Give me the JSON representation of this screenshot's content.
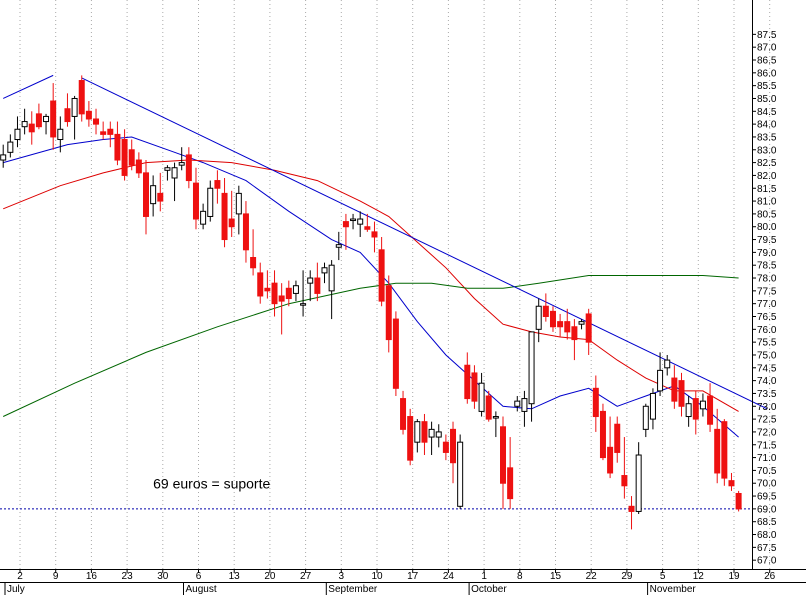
{
  "chart_data": {
    "type": "candlestick",
    "y_axis": {
      "position": "right",
      "min": 66.5,
      "max": 87.75,
      "step": 0.5,
      "first_label": 67.0,
      "last_label": 87.5
    },
    "x_axis": {
      "ticks": [
        "2",
        "9",
        "16",
        "23",
        "30",
        "6",
        "13",
        "20",
        "27",
        "3",
        "10",
        "17",
        "24",
        "1",
        "8",
        "15",
        "22",
        "29",
        "5",
        "12",
        "19",
        "26"
      ],
      "months": [
        {
          "label": "July",
          "tick_index": 0
        },
        {
          "label": "August",
          "tick_index": 5
        },
        {
          "label": "September",
          "tick_index": 9
        },
        {
          "label": "October",
          "tick_index": 13
        },
        {
          "label": "November",
          "tick_index": 18
        }
      ]
    },
    "grid": {
      "vertical_dotted": true,
      "horizontal": false
    },
    "candles_up_color": "#000000",
    "candles_down_color": "#ee1111",
    "ma_colors": {
      "short": "#0000cc",
      "medium": "#dd0000",
      "long": "#006600"
    },
    "candles": [
      {
        "day": 0,
        "o": 82.6,
        "h": 83.2,
        "l": 82.3,
        "c": 82.8
      },
      {
        "day": 1,
        "o": 82.9,
        "h": 83.6,
        "l": 82.7,
        "c": 83.3
      },
      {
        "day": 2,
        "o": 83.4,
        "h": 84.3,
        "l": 83.1,
        "c": 83.8
      },
      {
        "day": 3,
        "o": 83.9,
        "h": 84.6,
        "l": 83.6,
        "c": 84.1
      },
      {
        "day": 4,
        "o": 84.0,
        "h": 84.5,
        "l": 83.2,
        "c": 83.7
      },
      {
        "day": 5,
        "o": 84.4,
        "h": 84.8,
        "l": 83.8,
        "c": 83.9
      },
      {
        "day": 6,
        "o": 84.1,
        "h": 84.4,
        "l": 83.6,
        "c": 84.3
      },
      {
        "day": 7,
        "o": 84.9,
        "h": 85.6,
        "l": 83.0,
        "c": 83.5
      },
      {
        "day": 8,
        "o": 83.4,
        "h": 84.3,
        "l": 82.9,
        "c": 83.8
      },
      {
        "day": 9,
        "o": 84.6,
        "h": 85.2,
        "l": 83.9,
        "c": 84.1
      },
      {
        "day": 10,
        "o": 84.3,
        "h": 85.1,
        "l": 83.4,
        "c": 85.0
      },
      {
        "day": 11,
        "o": 85.7,
        "h": 85.9,
        "l": 84.1,
        "c": 84.4
      },
      {
        "day": 12,
        "o": 84.5,
        "h": 84.9,
        "l": 83.9,
        "c": 84.2
      },
      {
        "day": 13,
        "o": 84.2,
        "h": 84.6,
        "l": 83.6,
        "c": 84.0
      },
      {
        "day": 14,
        "o": 83.7,
        "h": 84.1,
        "l": 83.4,
        "c": 83.6
      },
      {
        "day": 15,
        "o": 83.8,
        "h": 84.1,
        "l": 83.1,
        "c": 83.6
      },
      {
        "day": 16,
        "o": 83.6,
        "h": 84.1,
        "l": 82.4,
        "c": 82.6
      },
      {
        "day": 17,
        "o": 83.4,
        "h": 83.8,
        "l": 81.8,
        "c": 82.0
      },
      {
        "day": 18,
        "o": 83.0,
        "h": 83.4,
        "l": 82.2,
        "c": 82.4
      },
      {
        "day": 19,
        "o": 82.6,
        "h": 82.9,
        "l": 81.9,
        "c": 82.1
      },
      {
        "day": 20,
        "o": 82.1,
        "h": 82.6,
        "l": 79.7,
        "c": 80.4
      },
      {
        "day": 21,
        "o": 80.9,
        "h": 82.0,
        "l": 80.4,
        "c": 81.6
      },
      {
        "day": 22,
        "o": 81.3,
        "h": 82.1,
        "l": 80.6,
        "c": 81.0
      },
      {
        "day": 23,
        "o": 82.2,
        "h": 82.4,
        "l": 81.8,
        "c": 82.3
      },
      {
        "day": 24,
        "o": 81.9,
        "h": 82.5,
        "l": 81.0,
        "c": 82.3
      },
      {
        "day": 25,
        "o": 82.4,
        "h": 83.1,
        "l": 82.2,
        "c": 82.5
      },
      {
        "day": 26,
        "o": 82.8,
        "h": 83.1,
        "l": 81.5,
        "c": 81.8
      },
      {
        "day": 27,
        "o": 81.7,
        "h": 82.3,
        "l": 79.9,
        "c": 80.3
      },
      {
        "day": 28,
        "o": 80.1,
        "h": 80.9,
        "l": 79.9,
        "c": 80.6
      },
      {
        "day": 29,
        "o": 80.4,
        "h": 81.8,
        "l": 80.2,
        "c": 81.5
      },
      {
        "day": 30,
        "o": 81.8,
        "h": 82.2,
        "l": 80.9,
        "c": 81.5
      },
      {
        "day": 31,
        "o": 81.3,
        "h": 81.9,
        "l": 79.2,
        "c": 79.5
      },
      {
        "day": 32,
        "o": 80.3,
        "h": 81.4,
        "l": 79.6,
        "c": 80.0
      },
      {
        "day": 33,
        "o": 80.5,
        "h": 81.6,
        "l": 79.7,
        "c": 81.3
      },
      {
        "day": 34,
        "o": 80.5,
        "h": 81.0,
        "l": 78.6,
        "c": 79.1
      },
      {
        "day": 35,
        "o": 78.8,
        "h": 79.9,
        "l": 78.1,
        "c": 78.4
      },
      {
        "day": 36,
        "o": 78.2,
        "h": 78.6,
        "l": 77.0,
        "c": 77.3
      },
      {
        "day": 37,
        "o": 77.6,
        "h": 78.3,
        "l": 77.2,
        "c": 77.5
      },
      {
        "day": 38,
        "o": 77.8,
        "h": 78.3,
        "l": 76.5,
        "c": 77.0
      },
      {
        "day": 39,
        "o": 77.3,
        "h": 77.8,
        "l": 75.8,
        "c": 77.1
      },
      {
        "day": 40,
        "o": 77.6,
        "h": 77.9,
        "l": 76.9,
        "c": 77.2
      },
      {
        "day": 41,
        "o": 77.4,
        "h": 77.9,
        "l": 77.1,
        "c": 77.7
      },
      {
        "day": 42,
        "o": 77.0,
        "h": 78.3,
        "l": 76.5,
        "c": 77.0
      },
      {
        "day": 43,
        "o": 77.8,
        "h": 78.3,
        "l": 77.1,
        "c": 78.0
      },
      {
        "day": 44,
        "o": 78.0,
        "h": 78.6,
        "l": 77.1,
        "c": 77.4
      },
      {
        "day": 45,
        "o": 78.2,
        "h": 78.6,
        "l": 77.8,
        "c": 78.4
      },
      {
        "day": 46,
        "o": 77.5,
        "h": 78.7,
        "l": 76.4,
        "c": 78.5
      },
      {
        "day": 47,
        "o": 79.2,
        "h": 79.8,
        "l": 78.7,
        "c": 79.3
      },
      {
        "day": 48,
        "o": 80.2,
        "h": 80.5,
        "l": 79.1,
        "c": 80.0
      },
      {
        "day": 49,
        "o": 80.3,
        "h": 80.5,
        "l": 79.9,
        "c": 80.3
      },
      {
        "day": 50,
        "o": 80.1,
        "h": 80.6,
        "l": 79.6,
        "c": 80.3
      },
      {
        "day": 51,
        "o": 80.0,
        "h": 80.5,
        "l": 79.8,
        "c": 79.9
      },
      {
        "day": 52,
        "o": 79.8,
        "h": 80.2,
        "l": 79.0,
        "c": 79.6
      },
      {
        "day": 53,
        "o": 79.1,
        "h": 79.6,
        "l": 76.9,
        "c": 77.1
      },
      {
        "day": 54,
        "o": 77.7,
        "h": 78.1,
        "l": 75.1,
        "c": 75.6
      },
      {
        "day": 55,
        "o": 76.4,
        "h": 76.7,
        "l": 73.4,
        "c": 73.7
      },
      {
        "day": 56,
        "o": 73.3,
        "h": 73.6,
        "l": 71.9,
        "c": 72.1
      },
      {
        "day": 57,
        "o": 72.6,
        "h": 72.9,
        "l": 70.7,
        "c": 70.9
      },
      {
        "day": 58,
        "o": 71.6,
        "h": 72.5,
        "l": 71.2,
        "c": 72.4
      },
      {
        "day": 59,
        "o": 72.4,
        "h": 72.7,
        "l": 71.1,
        "c": 71.6
      },
      {
        "day": 60,
        "o": 71.8,
        "h": 72.4,
        "l": 71.1,
        "c": 72.1
      },
      {
        "day": 61,
        "o": 71.8,
        "h": 72.3,
        "l": 71.4,
        "c": 72.0
      },
      {
        "day": 62,
        "o": 71.6,
        "h": 71.9,
        "l": 70.9,
        "c": 71.2
      },
      {
        "day": 63,
        "o": 72.1,
        "h": 72.4,
        "l": 70.0,
        "c": 70.8
      },
      {
        "day": 64,
        "o": 69.1,
        "h": 71.9,
        "l": 69.0,
        "c": 71.6
      },
      {
        "day": 65,
        "o": 74.6,
        "h": 75.1,
        "l": 73.1,
        "c": 73.3
      },
      {
        "day": 66,
        "o": 74.3,
        "h": 74.6,
        "l": 72.9,
        "c": 73.2
      },
      {
        "day": 67,
        "o": 72.8,
        "h": 74.3,
        "l": 72.6,
        "c": 73.9
      },
      {
        "day": 68,
        "o": 73.4,
        "h": 73.6,
        "l": 72.4,
        "c": 72.5
      },
      {
        "day": 69,
        "o": 72.6,
        "h": 72.8,
        "l": 71.8,
        "c": 72.6
      },
      {
        "day": 70,
        "o": 72.2,
        "h": 72.6,
        "l": 69.0,
        "c": 70.0
      },
      {
        "day": 71,
        "o": 70.6,
        "h": 71.8,
        "l": 69.0,
        "c": 69.4
      },
      {
        "day": 72,
        "o": 73.0,
        "h": 73.4,
        "l": 72.8,
        "c": 73.2
      },
      {
        "day": 73,
        "o": 72.8,
        "h": 73.6,
        "l": 72.2,
        "c": 73.3
      },
      {
        "day": 74,
        "o": 73.1,
        "h": 75.9,
        "l": 72.4,
        "c": 75.9
      },
      {
        "day": 75,
        "o": 76.0,
        "h": 77.2,
        "l": 75.5,
        "c": 76.9
      },
      {
        "day": 76,
        "o": 76.9,
        "h": 77.4,
        "l": 76.3,
        "c": 76.5
      },
      {
        "day": 77,
        "o": 76.7,
        "h": 76.9,
        "l": 75.9,
        "c": 76.1
      },
      {
        "day": 78,
        "o": 76.3,
        "h": 76.6,
        "l": 75.7,
        "c": 76.1
      },
      {
        "day": 79,
        "o": 76.3,
        "h": 76.8,
        "l": 75.6,
        "c": 75.9
      },
      {
        "day": 80,
        "o": 76.1,
        "h": 76.4,
        "l": 74.8,
        "c": 75.6
      },
      {
        "day": 81,
        "o": 76.2,
        "h": 76.4,
        "l": 76.0,
        "c": 76.3
      },
      {
        "day": 82,
        "o": 76.6,
        "h": 76.8,
        "l": 75.0,
        "c": 75.5
      },
      {
        "day": 83,
        "o": 73.7,
        "h": 74.2,
        "l": 72.0,
        "c": 72.6
      },
      {
        "day": 84,
        "o": 72.8,
        "h": 73.1,
        "l": 70.9,
        "c": 71.0
      },
      {
        "day": 85,
        "o": 71.4,
        "h": 72.6,
        "l": 70.2,
        "c": 70.4
      },
      {
        "day": 86,
        "o": 72.3,
        "h": 72.6,
        "l": 70.8,
        "c": 71.2
      },
      {
        "day": 87,
        "o": 70.3,
        "h": 71.8,
        "l": 69.4,
        "c": 69.9
      },
      {
        "day": 88,
        "o": 69.1,
        "h": 69.5,
        "l": 68.2,
        "c": 68.9
      },
      {
        "day": 89,
        "o": 68.9,
        "h": 71.6,
        "l": 68.8,
        "c": 71.1
      },
      {
        "day": 90,
        "o": 72.1,
        "h": 73.1,
        "l": 71.8,
        "c": 73.0
      },
      {
        "day": 91,
        "o": 72.5,
        "h": 73.7,
        "l": 72.1,
        "c": 73.5
      },
      {
        "day": 92,
        "o": 73.6,
        "h": 75.1,
        "l": 73.4,
        "c": 74.4
      },
      {
        "day": 93,
        "o": 74.5,
        "h": 75.0,
        "l": 74.2,
        "c": 74.8
      },
      {
        "day": 94,
        "o": 74.1,
        "h": 74.6,
        "l": 72.9,
        "c": 73.2
      },
      {
        "day": 95,
        "o": 74.0,
        "h": 74.3,
        "l": 72.6,
        "c": 73.0
      },
      {
        "day": 96,
        "o": 72.6,
        "h": 73.4,
        "l": 72.2,
        "c": 73.1
      },
      {
        "day": 97,
        "o": 73.3,
        "h": 73.6,
        "l": 71.9,
        "c": 72.5
      },
      {
        "day": 98,
        "o": 72.9,
        "h": 73.5,
        "l": 72.6,
        "c": 73.2
      },
      {
        "day": 99,
        "o": 73.4,
        "h": 73.9,
        "l": 72.0,
        "c": 72.3
      },
      {
        "day": 100,
        "o": 72.1,
        "h": 72.9,
        "l": 70.0,
        "c": 70.4
      },
      {
        "day": 101,
        "o": 72.4,
        "h": 72.5,
        "l": 69.9,
        "c": 70.2
      },
      {
        "day": 102,
        "o": 70.1,
        "h": 70.4,
        "l": 69.7,
        "c": 69.9
      },
      {
        "day": 103,
        "o": 69.6,
        "h": 69.7,
        "l": 68.9,
        "c": 69.0
      }
    ],
    "moving_averages": [
      {
        "color_key": "short",
        "points": [
          [
            0,
            82.5
          ],
          [
            9,
            83.2
          ],
          [
            14,
            83.4
          ],
          [
            18,
            83.5
          ],
          [
            24,
            82.9
          ],
          [
            28,
            82.5
          ],
          [
            34,
            81.8
          ],
          [
            40,
            80.6
          ],
          [
            46,
            79.5
          ],
          [
            50,
            79.0
          ],
          [
            54,
            77.8
          ],
          [
            58,
            76.3
          ],
          [
            62,
            75.0
          ],
          [
            66,
            74.0
          ],
          [
            70,
            73.0
          ],
          [
            74,
            72.9
          ],
          [
            78,
            73.4
          ],
          [
            82,
            73.7
          ],
          [
            86,
            73.0
          ],
          [
            90,
            73.4
          ],
          [
            94,
            73.8
          ],
          [
            98,
            73.0
          ],
          [
            103,
            71.8
          ]
        ]
      },
      {
        "color_key": "medium",
        "points": [
          [
            0,
            80.7
          ],
          [
            8,
            81.6
          ],
          [
            14,
            82.1
          ],
          [
            20,
            82.5
          ],
          [
            26,
            82.6
          ],
          [
            32,
            82.5
          ],
          [
            38,
            82.2
          ],
          [
            44,
            81.8
          ],
          [
            50,
            81.0
          ],
          [
            54,
            80.4
          ],
          [
            58,
            79.4
          ],
          [
            62,
            78.4
          ],
          [
            66,
            77.2
          ],
          [
            70,
            76.2
          ],
          [
            74,
            75.9
          ],
          [
            78,
            75.7
          ],
          [
            82,
            75.6
          ],
          [
            86,
            74.8
          ],
          [
            90,
            74.1
          ],
          [
            94,
            73.6
          ],
          [
            98,
            73.6
          ],
          [
            103,
            72.8
          ]
        ]
      },
      {
        "color_key": "long",
        "points": [
          [
            0,
            72.6
          ],
          [
            10,
            73.9
          ],
          [
            20,
            75.1
          ],
          [
            30,
            76.1
          ],
          [
            40,
            77.0
          ],
          [
            50,
            77.6
          ],
          [
            55,
            77.8
          ],
          [
            60,
            77.8
          ],
          [
            65,
            77.6
          ],
          [
            70,
            77.6
          ],
          [
            75,
            77.8
          ],
          [
            82,
            78.1
          ],
          [
            90,
            78.1
          ],
          [
            98,
            78.1
          ],
          [
            103,
            78.0
          ]
        ]
      }
    ],
    "trendlines": [
      {
        "from": [
          0,
          85.0
        ],
        "to": [
          7,
          85.9
        ],
        "color": "#0000cc"
      },
      {
        "from": [
          11,
          85.8
        ],
        "to": [
          107,
          72.9
        ],
        "color": "#0000cc"
      }
    ],
    "support": {
      "y": 69.0,
      "color": "#0000aa"
    },
    "annotations": [
      {
        "text": "69 euros = suporte",
        "x_day": 21,
        "y": 69.8
      }
    ]
  }
}
